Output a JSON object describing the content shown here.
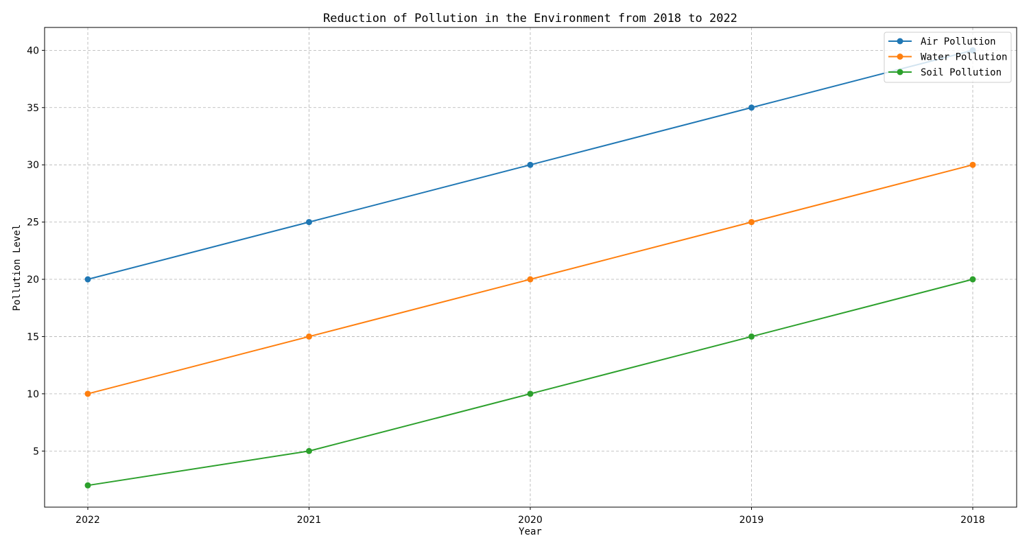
{
  "chart_data": {
    "type": "line",
    "title": "Reduction of Pollution in the Environment from 2018 to 2022",
    "xlabel": "Year",
    "ylabel": "Pollution Level",
    "categories": [
      "2022",
      "2021",
      "2020",
      "2019",
      "2018"
    ],
    "ylim": [
      0.1,
      42
    ],
    "yticks": [
      5,
      10,
      15,
      20,
      25,
      30,
      35,
      40
    ],
    "grid": true,
    "legend_position": "top-right",
    "series": [
      {
        "name": "Air Pollution",
        "color": "#1f77b4",
        "values": [
          20,
          25,
          30,
          35,
          40
        ]
      },
      {
        "name": "Water Pollution",
        "color": "#ff7f0e",
        "values": [
          10,
          15,
          20,
          25,
          30
        ]
      },
      {
        "name": "Soil Pollution",
        "color": "#2ca02c",
        "values": [
          2,
          5,
          10,
          15,
          20
        ]
      }
    ]
  }
}
